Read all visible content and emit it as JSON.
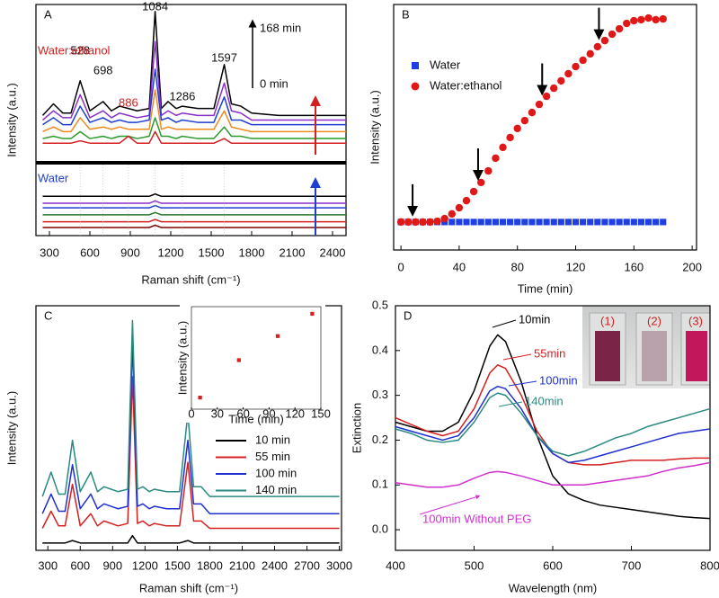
{
  "chart_data": [
    {
      "type": "line",
      "panel": "A",
      "xlabel": "Raman shift (cm⁻¹)",
      "ylabel": "Intensity (a.u.)",
      "xlim": [
        200,
        2500
      ],
      "ylim": [
        0,
        100
      ],
      "xticks": [
        300,
        600,
        900,
        1200,
        1500,
        1800,
        2100,
        2400
      ],
      "x": [
        250,
        330,
        400,
        460,
        528,
        600,
        698,
        760,
        820,
        886,
        950,
        1040,
        1084,
        1130,
        1180,
        1240,
        1286,
        1400,
        1520,
        1597,
        1650,
        1720,
        1800,
        2000,
        2200,
        2500
      ],
      "series": [
        {
          "color": "#000000",
          "values": [
            52,
            57,
            53,
            53,
            67,
            54,
            58,
            54,
            56,
            55,
            54,
            55,
            97,
            55,
            58,
            55,
            56,
            55,
            55,
            74,
            57,
            56,
            53,
            52,
            52,
            52
          ]
        },
        {
          "color": "#8b2fc9",
          "values": [
            50,
            54,
            51,
            51,
            61,
            51,
            54,
            51,
            53,
            52,
            51,
            52,
            84,
            52,
            54,
            52,
            53,
            52,
            52,
            66,
            54,
            53,
            50,
            50,
            50,
            50
          ]
        },
        {
          "color": "#1f3fd0",
          "values": [
            48,
            51,
            48,
            48,
            56,
            49,
            51,
            49,
            50,
            49,
            49,
            50,
            72,
            50,
            51,
            49,
            50,
            49,
            49,
            60,
            50,
            50,
            48,
            48,
            48,
            48
          ]
        },
        {
          "color": "#f08a20",
          "values": [
            45,
            47,
            45,
            45,
            51,
            46,
            47,
            46,
            47,
            46,
            46,
            46,
            63,
            46,
            47,
            46,
            46,
            46,
            46,
            54,
            47,
            46,
            45,
            45,
            45,
            45
          ]
        },
        {
          "color": "#2a9a2a",
          "values": [
            42,
            43,
            42,
            42,
            45,
            42,
            43,
            42,
            43,
            43,
            42,
            43,
            51,
            43,
            43,
            42,
            43,
            42,
            42,
            47,
            43,
            43,
            42,
            42,
            42,
            42
          ]
        },
        {
          "color": "#d42020",
          "values": [
            40,
            40,
            40,
            40,
            41,
            40,
            40,
            40,
            40,
            43,
            40,
            40,
            45,
            40,
            40,
            40,
            40,
            40,
            40,
            42,
            40,
            40,
            40,
            40,
            40,
            40
          ]
        },
        {
          "color": "#000000",
          "values": [
            17,
            17,
            17,
            17,
            17,
            17,
            17,
            17,
            17,
            17,
            17,
            17,
            18,
            17,
            17,
            17,
            17,
            17,
            17,
            17,
            17,
            17,
            17,
            17,
            17,
            17
          ]
        },
        {
          "color": "#8b2fc9",
          "values": [
            14,
            14,
            14,
            14,
            14,
            14,
            14,
            14,
            14,
            14,
            14,
            14,
            15,
            14,
            14,
            14,
            14,
            14,
            14,
            14,
            14,
            14,
            14,
            14,
            14,
            14
          ]
        },
        {
          "color": "#1f3fd0",
          "values": [
            12,
            12,
            12,
            12,
            12,
            12,
            12,
            12,
            12,
            12,
            12,
            12,
            13,
            12,
            12,
            12,
            12,
            12,
            12,
            12,
            12,
            12,
            12,
            12,
            12,
            12
          ]
        },
        {
          "color": "#2a7a2a",
          "values": [
            9,
            9,
            9,
            9,
            9,
            9,
            9,
            9,
            9,
            9,
            9,
            9,
            10,
            9,
            9,
            9,
            9,
            9,
            9,
            9,
            9,
            9,
            9,
            9,
            9,
            9
          ]
        },
        {
          "color": "#d42020",
          "values": [
            6,
            6,
            6,
            6,
            6,
            6,
            6,
            6,
            6,
            6,
            6,
            6,
            7,
            6,
            6,
            6,
            6,
            6,
            6,
            6,
            6,
            6,
            6,
            6,
            6,
            6
          ]
        },
        {
          "color": "#800000",
          "values": [
            3.5,
            3.5,
            3.5,
            3.5,
            3.5,
            3.5,
            3.5,
            3.5,
            3.5,
            3.5,
            3.5,
            3.5,
            4.5,
            3.5,
            3.5,
            3.5,
            3.5,
            3.5,
            3.5,
            3.5,
            3.5,
            3.5,
            3.5,
            3.5,
            3.5,
            3.5
          ]
        }
      ],
      "peak_labels": [
        528,
        698,
        886,
        1084,
        1286,
        1597
      ],
      "peak_label_colors": [
        "#111111",
        "#111111",
        "#d42020",
        "#111111",
        "#111111",
        "#111111"
      ],
      "group_labels": [
        {
          "text": "Water:ethanol",
          "color": "#d42020"
        },
        {
          "text": "Water",
          "color": "#1f3fd0"
        }
      ],
      "time_labels": [
        "168 min",
        "0 min"
      ]
    },
    {
      "type": "scatter",
      "panel": "B",
      "xlabel": "Time (min)",
      "ylabel": "Intensity (a.u.)",
      "xlim": [
        -5,
        203
      ],
      "ylim": [
        0,
        100
      ],
      "xticks": [
        0,
        40,
        80,
        120,
        160,
        200
      ],
      "legend": "upper left",
      "x": [
        0,
        5,
        10,
        15,
        20,
        25,
        30,
        35,
        40,
        45,
        50,
        55,
        60,
        65,
        70,
        75,
        80,
        85,
        90,
        95,
        100,
        105,
        110,
        115,
        120,
        125,
        130,
        135,
        140,
        145,
        150,
        155,
        160,
        165,
        170,
        175,
        180
      ],
      "series": [
        {
          "name": "Water",
          "color": "#1f3fe0",
          "marker": "square",
          "values": [
            11.4,
            11.4,
            11.4,
            11.4,
            11.4,
            11.4,
            11.4,
            11.4,
            11.4,
            11.4,
            11.4,
            11.4,
            11.4,
            11.4,
            11.4,
            11.4,
            11.4,
            11.4,
            11.4,
            11.4,
            11.4,
            11.4,
            11.4,
            11.4,
            11.4,
            11.4,
            11.4,
            11.4,
            11.4,
            11.4,
            11.4,
            11.4,
            11.4,
            11.4,
            11.4,
            11.4,
            11.4
          ]
        },
        {
          "name": "Water:ethanol",
          "color": "#e01818",
          "marker": "circle",
          "values": [
            11.4,
            11.4,
            11.4,
            11.4,
            11.4,
            11.7,
            12.8,
            14.7,
            17.2,
            20.1,
            23.8,
            27.5,
            32.2,
            37.4,
            41.8,
            45.8,
            49.5,
            52.7,
            56.0,
            59.3,
            62.6,
            65.9,
            68.9,
            71.8,
            74.7,
            77.3,
            79.9,
            82.8,
            85.3,
            87.9,
            90.1,
            92.3,
            93.4,
            93.8,
            94.5,
            93.8,
            94.1
          ]
        }
      ],
      "arrows_x": [
        8,
        53,
        97,
        136
      ]
    },
    {
      "type": "line",
      "panel": "C",
      "xlabel": "Raman shift (cm⁻¹)",
      "ylabel": "Intensity (a.u.)",
      "xlim": [
        190,
        3020
      ],
      "ylim": [
        0,
        100
      ],
      "xticks": [
        300,
        600,
        900,
        1200,
        1500,
        1800,
        2100,
        2400,
        2700,
        3000
      ],
      "legend": "lower right",
      "x": [
        250,
        330,
        400,
        460,
        528,
        600,
        698,
        760,
        820,
        886,
        950,
        1040,
        1084,
        1130,
        1180,
        1240,
        1286,
        1400,
        1520,
        1597,
        1650,
        1720,
        1800,
        2000,
        2400,
        2800,
        3000
      ],
      "series": [
        {
          "name": "10 min",
          "color": "#000000",
          "values": [
            3,
            3,
            3,
            3,
            4,
            3,
            3,
            3,
            3,
            3,
            3,
            3,
            6,
            3,
            3,
            3,
            3,
            3,
            3,
            4,
            3,
            3,
            3,
            3,
            3,
            3,
            3
          ]
        },
        {
          "name": "55 min",
          "color": "#d42020",
          "values": [
            9,
            16,
            10,
            10,
            27,
            10,
            15,
            10,
            12,
            11,
            10,
            11,
            71,
            11,
            12,
            10,
            11,
            10,
            10,
            36,
            12,
            12,
            9,
            9,
            9,
            9,
            9
          ]
        },
        {
          "name": "100 min",
          "color": "#1f2fd0",
          "values": [
            15,
            23,
            16,
            16,
            35,
            17,
            23,
            17,
            19,
            18,
            17,
            18,
            85,
            18,
            19,
            17,
            18,
            17,
            17,
            45,
            19,
            19,
            15,
            15,
            15,
            15,
            15
          ]
        },
        {
          "name": "140 min",
          "color": "#2a8a80",
          "values": [
            22,
            32,
            23,
            23,
            45,
            24,
            32,
            24,
            26,
            25,
            24,
            25,
            94,
            25,
            26,
            24,
            25,
            24,
            24,
            56,
            26,
            26,
            22,
            22,
            22,
            22,
            22
          ]
        }
      ]
    },
    {
      "type": "scatter",
      "xlabel": "Time (min)",
      "ylabel": "Intensity (a.u.)",
      "xlim": [
        0,
        150
      ],
      "ylim": [
        0,
        100
      ],
      "xticks": [
        0,
        30,
        60,
        90,
        120,
        150
      ],
      "x": [
        10,
        55,
        100,
        140
      ],
      "series": [
        {
          "color": "#d42020",
          "marker": "square",
          "values": [
            11.3,
            47.8,
            71.3,
            93
          ]
        }
      ]
    },
    {
      "type": "line",
      "panel": "D",
      "xlabel": "Wavelength (nm)",
      "ylabel": "Extinction",
      "xlim": [
        400,
        800
      ],
      "ylim": [
        -0.046,
        0.5
      ],
      "xticks": [
        400,
        500,
        600,
        700,
        800
      ],
      "yticks": [
        {
          "value": 0,
          "label": "0.0"
        },
        0.1,
        0.2,
        0.3,
        0.4,
        0.5
      ],
      "x": [
        400,
        420,
        440,
        460,
        480,
        500,
        520,
        530,
        540,
        560,
        580,
        600,
        620,
        640,
        660,
        680,
        700,
        720,
        740,
        760,
        780,
        800
      ],
      "series": [
        {
          "name": "10min",
          "color": "#000000",
          "values": [
            0.24,
            0.23,
            0.22,
            0.22,
            0.24,
            0.31,
            0.41,
            0.435,
            0.42,
            0.33,
            0.21,
            0.12,
            0.08,
            0.065,
            0.055,
            0.05,
            0.045,
            0.04,
            0.035,
            0.03,
            0.027,
            0.025
          ]
        },
        {
          "name": "55min",
          "color": "#d42020",
          "values": [
            0.25,
            0.235,
            0.22,
            0.21,
            0.22,
            0.27,
            0.35,
            0.368,
            0.36,
            0.3,
            0.22,
            0.17,
            0.15,
            0.145,
            0.145,
            0.15,
            0.155,
            0.155,
            0.155,
            0.158,
            0.16,
            0.16
          ]
        },
        {
          "name": "100min",
          "color": "#1f2fd0",
          "values": [
            0.23,
            0.22,
            0.21,
            0.2,
            0.21,
            0.25,
            0.31,
            0.32,
            0.315,
            0.27,
            0.21,
            0.17,
            0.15,
            0.155,
            0.165,
            0.175,
            0.185,
            0.195,
            0.205,
            0.215,
            0.22,
            0.225
          ]
        },
        {
          "name": "140min",
          "color": "#2a8a80",
          "values": [
            0.225,
            0.215,
            0.2,
            0.195,
            0.2,
            0.24,
            0.295,
            0.305,
            0.3,
            0.26,
            0.21,
            0.175,
            0.165,
            0.175,
            0.19,
            0.205,
            0.215,
            0.23,
            0.24,
            0.25,
            0.26,
            0.27
          ]
        },
        {
          "name": "100min Without PEG",
          "color": "#d030d0",
          "values": [
            0.105,
            0.1,
            0.095,
            0.095,
            0.1,
            0.115,
            0.128,
            0.13,
            0.128,
            0.12,
            0.11,
            0.1,
            0.1,
            0.1,
            0.105,
            0.11,
            0.115,
            0.12,
            0.13,
            0.138,
            0.143,
            0.15
          ]
        }
      ],
      "inset_labels": [
        "(1)",
        "(2)",
        "(3)"
      ]
    }
  ]
}
